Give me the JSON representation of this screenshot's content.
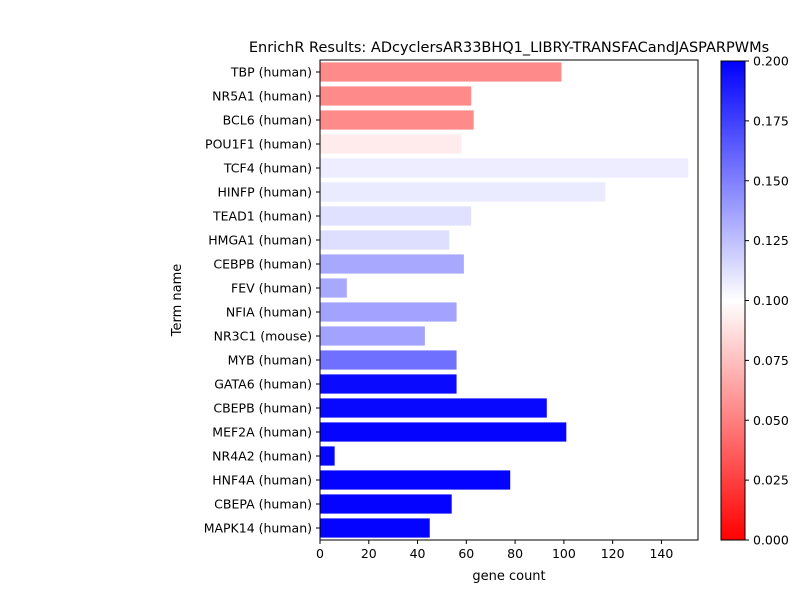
{
  "chart_data": {
    "type": "bar",
    "orientation": "horizontal",
    "title": "EnrichR Results: ADcyclersAR33BHQ1_LIBRY-TRANSFACandJASPARPWMs",
    "xlabel": "gene count",
    "ylabel": "Term name",
    "xlim": [
      0,
      155
    ],
    "x_ticks": [
      0,
      20,
      40,
      60,
      80,
      100,
      120,
      140
    ],
    "categories": [
      "TBP (human)",
      "NR5A1 (human)",
      "BCL6 (human)",
      "POU1F1 (human)",
      "TCF4 (human)",
      "HINFP (human)",
      "TEAD1 (human)",
      "HMGA1 (human)",
      "CEBPB (human)",
      "FEV (human)",
      "NFIA (human)",
      "NR3C1 (mouse)",
      "MYB (human)",
      "GATA6 (human)",
      "CBEPB (human)",
      "MEF2A (human)",
      "NR4A2 (human)",
      "HNF4A (human)",
      "CBEPA (human)",
      "MAPK14 (human)"
    ],
    "values": [
      99,
      62,
      63,
      58,
      151,
      117,
      62,
      53,
      59,
      11,
      56,
      43,
      56,
      56,
      93,
      101,
      6,
      78,
      54,
      45
    ],
    "color_values": [
      0.054,
      0.054,
      0.054,
      0.092,
      0.107,
      0.108,
      0.112,
      0.113,
      0.134,
      0.134,
      0.136,
      0.136,
      0.156,
      0.196,
      0.197,
      0.198,
      0.198,
      0.199,
      0.199,
      0.199
    ],
    "colorbar": {
      "range": [
        0.0,
        0.2
      ],
      "ticks": [
        "0.000",
        "0.025",
        "0.050",
        "0.075",
        "0.100",
        "0.125",
        "0.150",
        "0.175",
        "0.200"
      ],
      "colormap": "bwr_r",
      "low_color": "#ff0000",
      "mid_color": "#ffffff",
      "high_color": "#0000ff"
    },
    "grid": false,
    "legend": "none"
  }
}
